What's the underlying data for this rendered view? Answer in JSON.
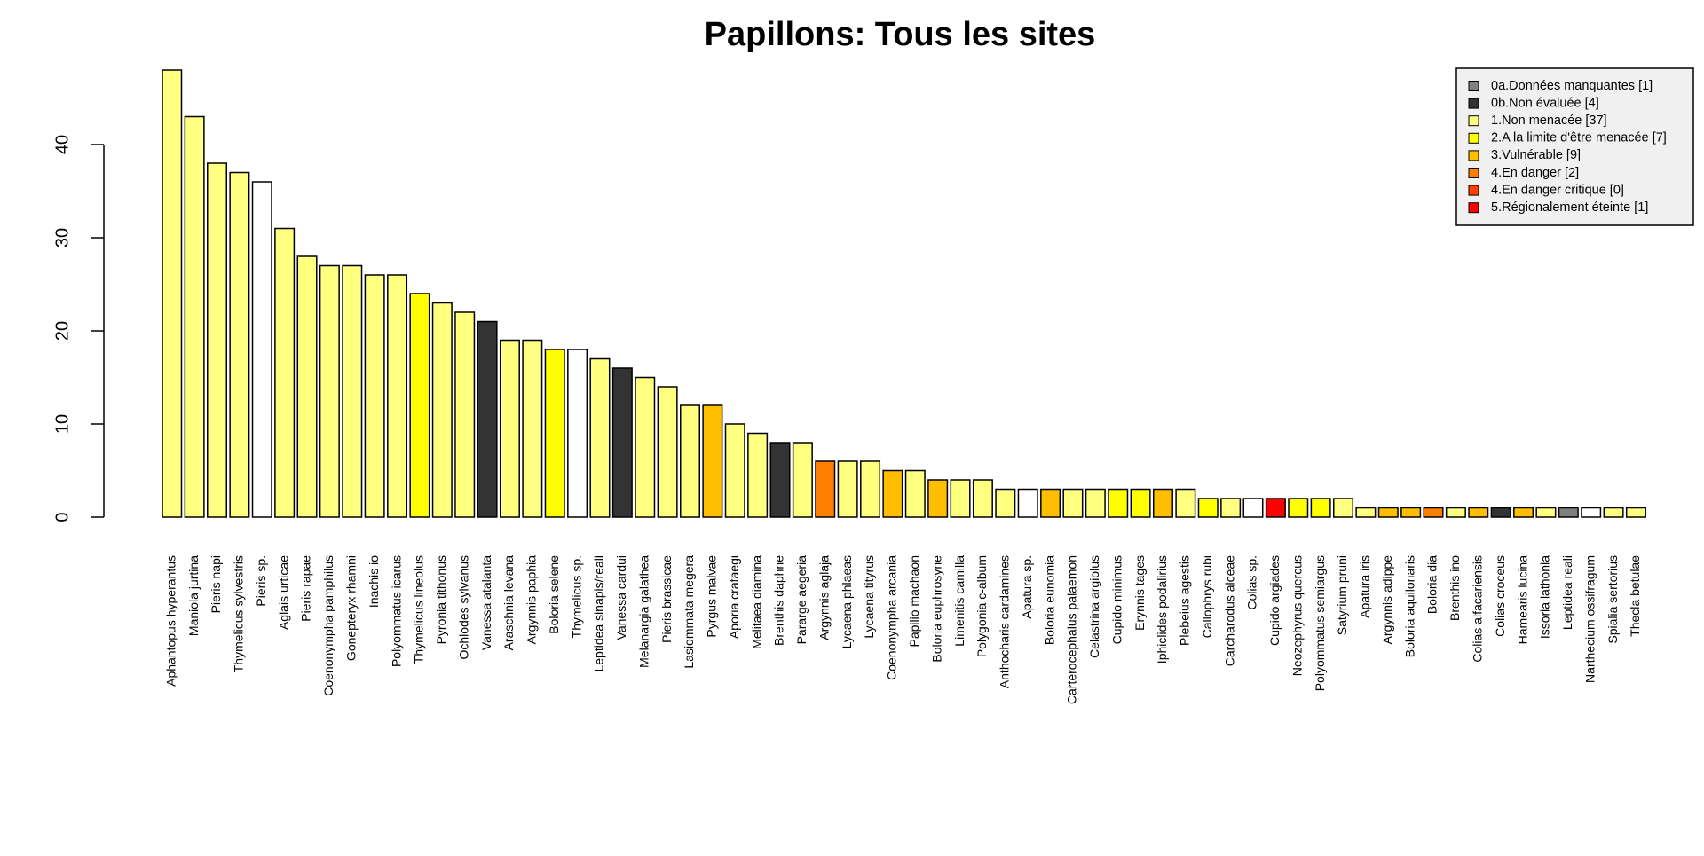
{
  "chart_data": {
    "type": "bar",
    "title": "Papillons: Tous les sites",
    "xlabel": "",
    "ylabel": "",
    "ylim": [
      0,
      48
    ],
    "yticks": [
      "0",
      "10",
      "20",
      "30",
      "40"
    ],
    "categories": [
      "Aphantopus hyperantus",
      "Maniola jurtina",
      "Pieris napi",
      "Thymelicus sylvestris",
      "Pieris sp.",
      "Aglais urticae",
      "Pieris rapae",
      "Coenonympha pamphilus",
      "Gonepteryx rhamni",
      "Inachis io",
      "Polyommatus icarus",
      "Thymelicus lineolus",
      "Pyronia tithonus",
      "Ochlodes sylvanus",
      "Vanessa atalanta",
      "Araschnia levana",
      "Argynnis paphia",
      "Boloria selene",
      "Thymelicus sp.",
      "Leptidea sinapis/reali",
      "Vanessa cardui",
      "Melanargia galathea",
      "Pieris brassicae",
      "Lasiommata megera",
      "Pyrgus malvae",
      "Aporia crataegi",
      "Melitaea diamina",
      "Brenthis daphne",
      "Pararge aegeria",
      "Argynnis aglaja",
      "Lycaena phlaeas",
      "Lycaena tityrus",
      "Coenonympha arcania",
      "Papilio machaon",
      "Boloria euphrosyne",
      "Limenitis camilla",
      "Polygonia c-album",
      "Anthocharis cardamines",
      "Apatura sp.",
      "Boloria eunomia",
      "Carterocephalus palaemon",
      "Celastrina argiolus",
      "Cupido minimus",
      "Erynnis tages",
      "Iphiclides podalirius",
      "Plebeius agestis",
      "Callophrys rubi",
      "Carcharodus alceae",
      "Colias sp.",
      "Cupido argiades",
      "Neozephyrus quercus",
      "Polyommatus semiargus",
      "Satyrium pruni",
      "Apatura iris",
      "Argynnis adippe",
      "Boloria aquilonaris",
      "Boloria dia",
      "Brenthis ino",
      "Colias alfacariensis",
      "Colias croceus",
      "Hamearis lucina",
      "Issoria lathonia",
      "Leptidea reali",
      "Narthecium ossifragum",
      "Spialia sertorius",
      "Thecla betulae"
    ],
    "values": [
      48,
      43,
      38,
      37,
      36,
      31,
      28,
      27,
      27,
      26,
      26,
      24,
      23,
      22,
      21,
      19,
      19,
      18,
      18,
      17,
      16,
      15,
      14,
      12,
      12,
      10,
      9,
      8,
      8,
      6,
      6,
      6,
      5,
      5,
      4,
      4,
      4,
      3,
      3,
      3,
      3,
      3,
      3,
      3,
      3,
      3,
      2,
      2,
      2,
      2,
      2,
      2,
      2,
      1,
      1,
      1,
      1,
      1,
      1,
      1,
      1,
      1,
      1,
      1,
      1,
      1
    ],
    "bar_colors": [
      "#FFFF80",
      "#FFFF80",
      "#FFFF80",
      "#FFFF80",
      "#FFFFFF",
      "#FFFF80",
      "#FFFF80",
      "#FFFF80",
      "#FFFF80",
      "#FFFF80",
      "#FFFF80",
      "#FFFF00",
      "#FFFF80",
      "#FFFF80",
      "#333333",
      "#FFFF80",
      "#FFFF80",
      "#FFFF00",
      "#FFFFFF",
      "#FFFF80",
      "#333333",
      "#FFFF80",
      "#FFFF80",
      "#FFFF80",
      "#FFBF00",
      "#FFFF80",
      "#FFFF80",
      "#333333",
      "#FFFF80",
      "#FF8000",
      "#FFFF80",
      "#FFFF80",
      "#FFBF00",
      "#FFFF80",
      "#FFBF00",
      "#FFFF80",
      "#FFFF80",
      "#FFFF80",
      "#FFFFFF",
      "#FFBF00",
      "#FFFF80",
      "#FFFF80",
      "#FFFF00",
      "#FFFF00",
      "#FFBF00",
      "#FFFF80",
      "#FFFF00",
      "#FFFF80",
      "#FFFFFF",
      "#FF0000",
      "#FFFF00",
      "#FFFF00",
      "#FFFF80",
      "#FFFF80",
      "#FFBF00",
      "#FFBF00",
      "#FF8000",
      "#FFFF80",
      "#FFBF00",
      "#333333",
      "#FFBF00",
      "#FFFF80",
      "#808080",
      "#FFFFFF",
      "#FFFF80",
      "#FFFF80"
    ],
    "legend": {
      "position": "top-right",
      "entries": [
        {
          "label": "0a.Données manquantes [1]",
          "color": "#808080"
        },
        {
          "label": "0b.Non évaluée [4]",
          "color": "#333333"
        },
        {
          "label": "1.Non menacée [37]",
          "color": "#FFFF80"
        },
        {
          "label": "2.A la limite d'être menacée [7]",
          "color": "#FFFF00"
        },
        {
          "label": "3.Vulnérable [9]",
          "color": "#FFBF00"
        },
        {
          "label": "4.En danger [2]",
          "color": "#FF8000"
        },
        {
          "label": "4.En danger critique [0]",
          "color": "#FF4000"
        },
        {
          "label": "5.Régionalement éteinte [1]",
          "color": "#FF0000"
        }
      ]
    },
    "grid": false
  }
}
